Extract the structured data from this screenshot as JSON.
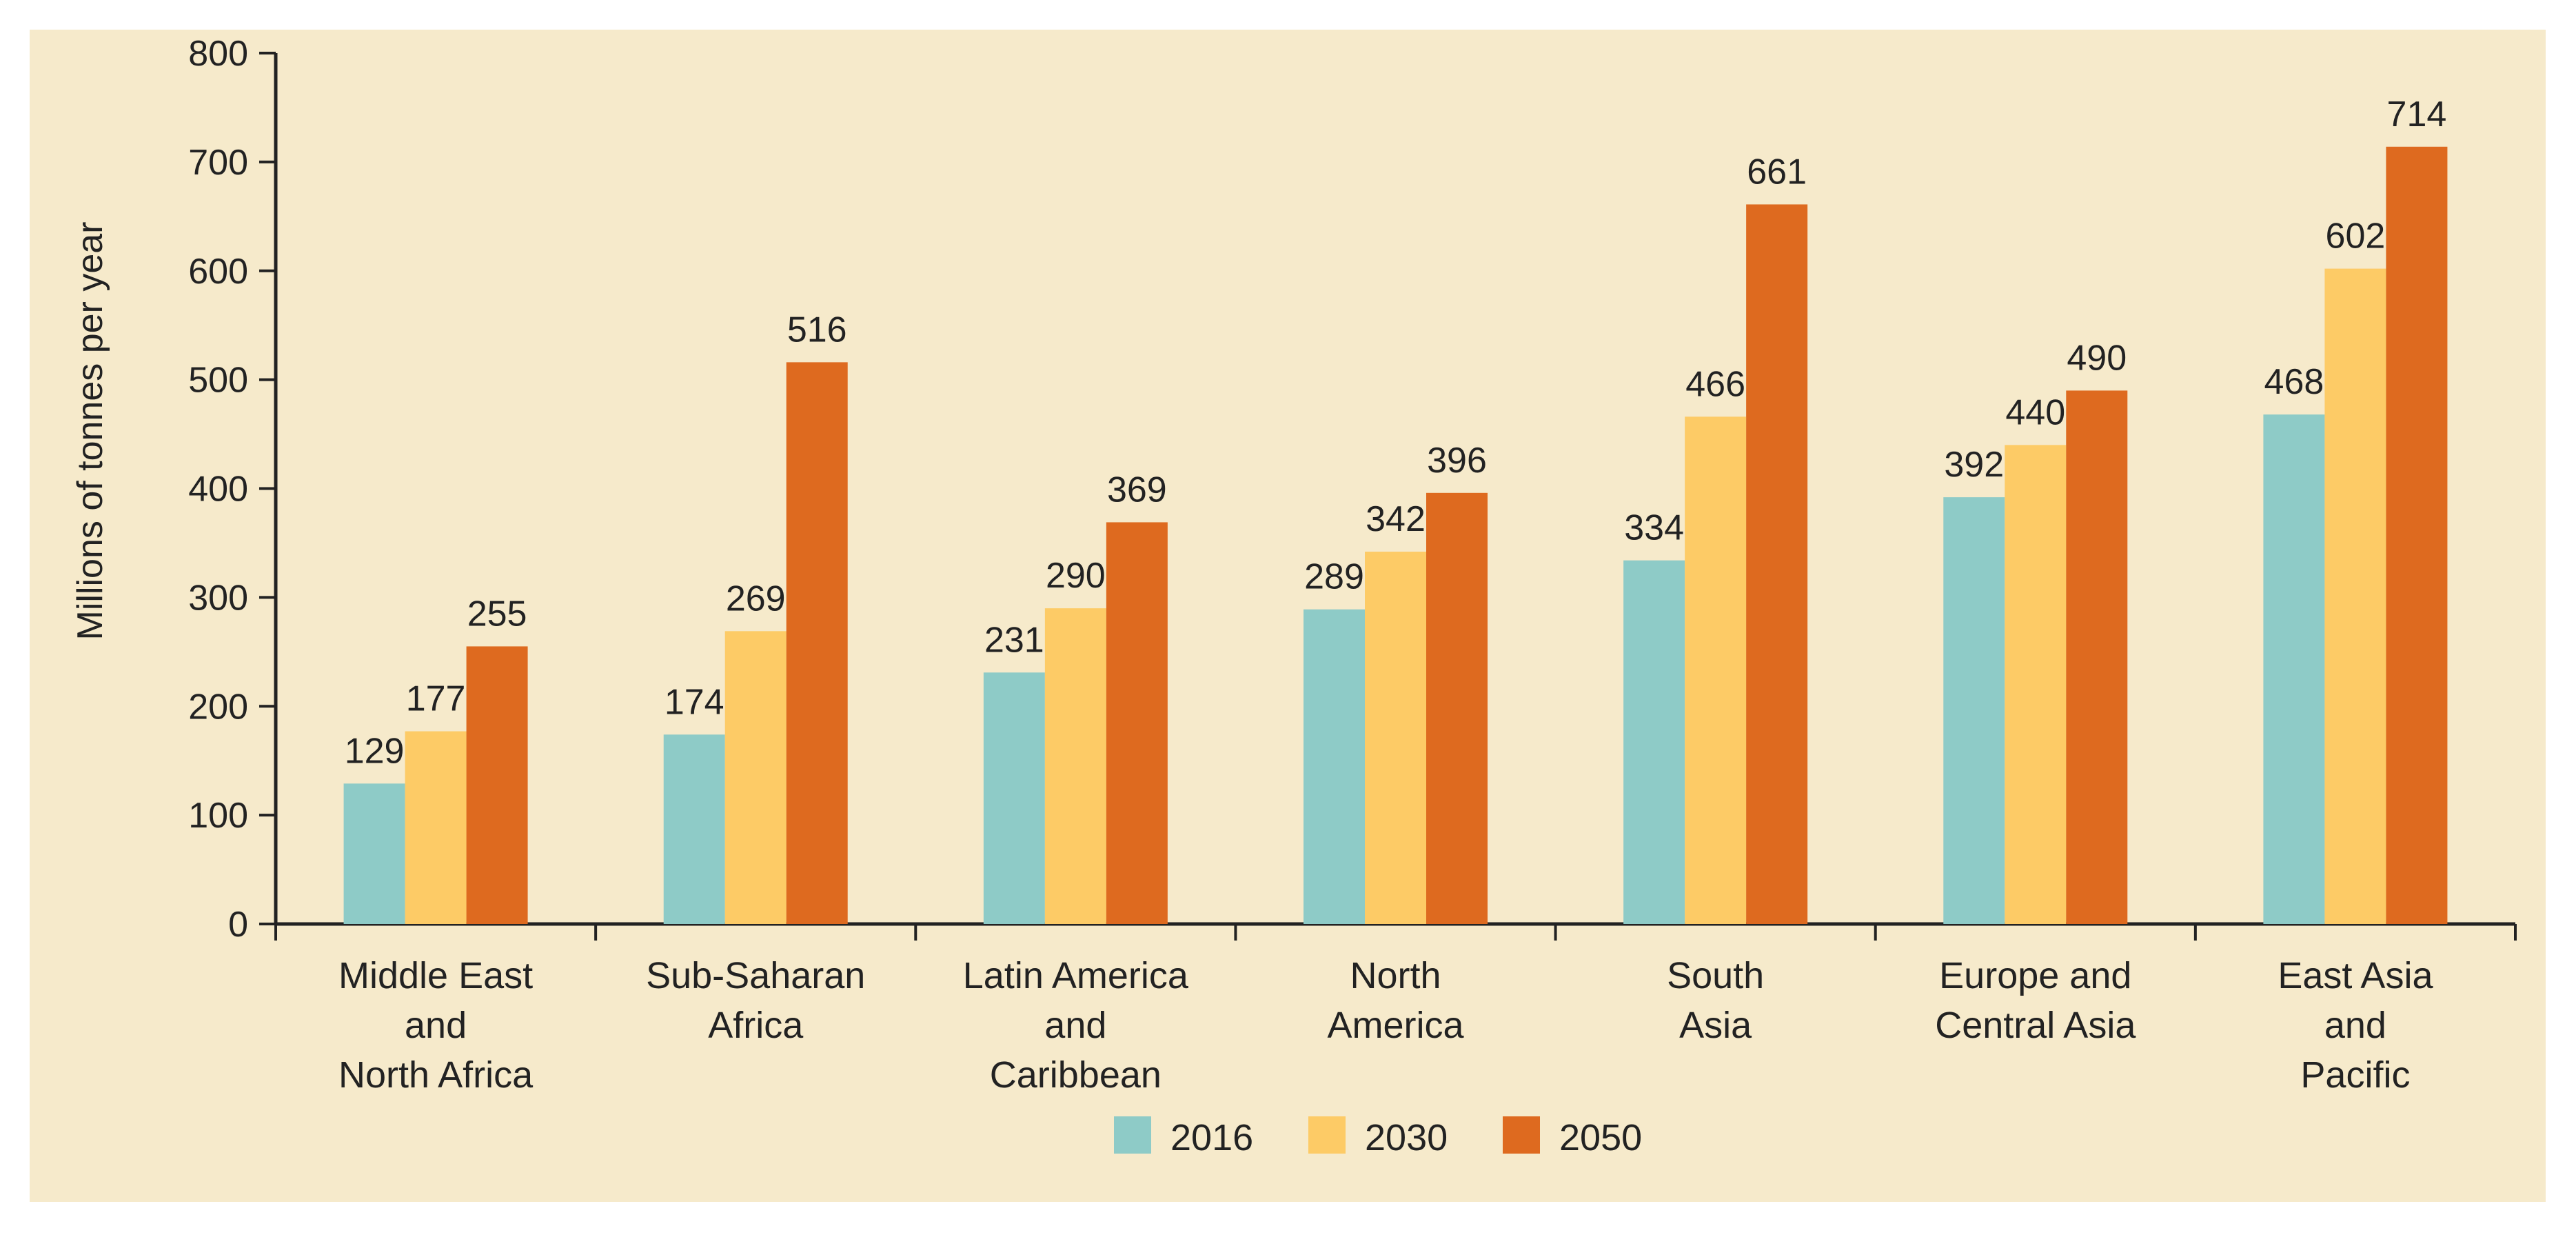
{
  "chart_data": {
    "type": "bar",
    "title": "",
    "xlabel": "",
    "ylabel": "Millions of tonnes per year",
    "ylim": [
      0,
      800
    ],
    "yticks": [
      0,
      100,
      200,
      300,
      400,
      500,
      600,
      700,
      800
    ],
    "grid": false,
    "legend_position": "bottom-center",
    "categories": [
      [
        "Middle East",
        "and",
        "North Africa"
      ],
      [
        "Sub-Saharan",
        "Africa"
      ],
      [
        "Latin America",
        "and",
        "Caribbean"
      ],
      [
        "North",
        "America"
      ],
      [
        "South",
        "Asia"
      ],
      [
        "Europe and",
        "Central Asia"
      ],
      [
        "East Asia",
        "and",
        "Pacific"
      ]
    ],
    "series": [
      {
        "name": "2016",
        "color": "#8ECBC7",
        "values": [
          129,
          174,
          231,
          289,
          334,
          392,
          468
        ]
      },
      {
        "name": "2030",
        "color": "#FDCB66",
        "values": [
          177,
          269,
          290,
          342,
          466,
          440,
          602
        ]
      },
      {
        "name": "2050",
        "color": "#DE6A1F",
        "values": [
          255,
          516,
          369,
          396,
          661,
          490,
          714
        ]
      }
    ]
  },
  "colors": {
    "panel_background": "#F6EACB",
    "axis": "#222222",
    "text": "#222222"
  }
}
